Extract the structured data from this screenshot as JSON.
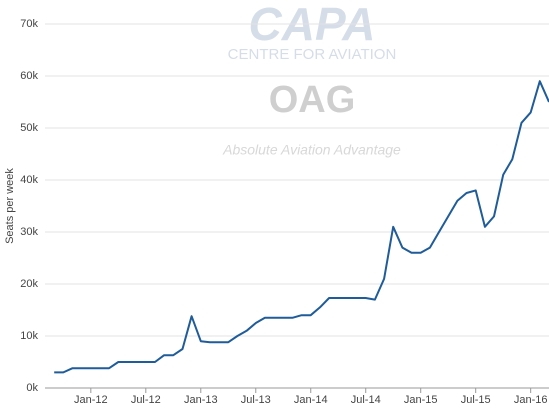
{
  "chart_data": {
    "type": "line",
    "y_label": "Seats per week",
    "watermarks": [
      "CAPA",
      "CENTRE FOR AVIATION",
      "OAG",
      "Absolute Aviation Advantage"
    ],
    "x": [
      "2011-09",
      "2011-10",
      "2011-11",
      "2011-12",
      "2012-01",
      "2012-02",
      "2012-03",
      "2012-04",
      "2012-05",
      "2012-06",
      "2012-07",
      "2012-08",
      "2012-09",
      "2012-10",
      "2012-11",
      "2012-12",
      "2013-01",
      "2013-02",
      "2013-03",
      "2013-04",
      "2013-05",
      "2013-06",
      "2013-07",
      "2013-08",
      "2013-09",
      "2013-10",
      "2013-11",
      "2013-12",
      "2014-01",
      "2014-02",
      "2014-03",
      "2014-04",
      "2014-05",
      "2014-06",
      "2014-07",
      "2014-08",
      "2014-09",
      "2014-10",
      "2014-11",
      "2014-12",
      "2015-01",
      "2015-02",
      "2015-03",
      "2015-04",
      "2015-05",
      "2015-06",
      "2015-07",
      "2015-08",
      "2015-09",
      "2015-10",
      "2015-11",
      "2015-12",
      "2016-01",
      "2016-02",
      "2016-03"
    ],
    "series": [
      {
        "name": "Seats",
        "color": "#1f5c99",
        "values": [
          3000,
          3000,
          3800,
          3800,
          3800,
          3800,
          3800,
          5000,
          5000,
          5000,
          5000,
          5000,
          6300,
          6300,
          7500,
          13800,
          9000,
          8800,
          8800,
          8800,
          10000,
          11000,
          12500,
          13500,
          13500,
          13500,
          13500,
          14000,
          14000,
          15500,
          17300,
          17300,
          17300,
          17300,
          17300,
          17000,
          21000,
          31000,
          27000,
          26000,
          26000,
          27000,
          30000,
          33000,
          36000,
          37500,
          38000,
          31000,
          33000,
          41000,
          44000,
          51000,
          53000,
          59000,
          55000
        ]
      }
    ],
    "xlim": [
      "2011-08",
      "2016-03"
    ],
    "xticks": [
      {
        "value": "2012-01",
        "label": "Jan-12"
      },
      {
        "value": "2012-07",
        "label": "Jul-12"
      },
      {
        "value": "2013-01",
        "label": "Jan-13"
      },
      {
        "value": "2013-07",
        "label": "Jul-13"
      },
      {
        "value": "2014-01",
        "label": "Jan-14"
      },
      {
        "value": "2014-07",
        "label": "Jul-14"
      },
      {
        "value": "2015-01",
        "label": "Jan-15"
      },
      {
        "value": "2015-07",
        "label": "Jul-15"
      },
      {
        "value": "2016-01",
        "label": "Jan-16"
      }
    ],
    "ylim": [
      0,
      70000
    ],
    "yticks": [
      {
        "value": 0,
        "label": "0k"
      },
      {
        "value": 10000,
        "label": "10k"
      },
      {
        "value": 20000,
        "label": "20k"
      },
      {
        "value": 30000,
        "label": "30k"
      },
      {
        "value": 40000,
        "label": "40k"
      },
      {
        "value": 50000,
        "label": "50k"
      },
      {
        "value": 60000,
        "label": "60k"
      },
      {
        "value": 70000,
        "label": "70k"
      }
    ],
    "grid": true
  }
}
